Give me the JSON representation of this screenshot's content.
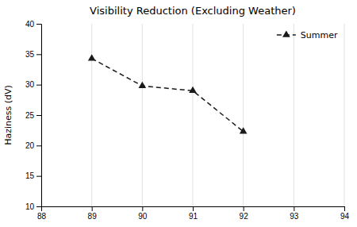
{
  "chart_data": {
    "type": "line",
    "title": "Visibility Reduction (Excluding Weather)",
    "ylabel": "Haziness (dV)",
    "x": [
      89,
      90,
      91,
      92
    ],
    "series": [
      {
        "name": "Summer",
        "color": "#1a1a1a",
        "marker": "triangle",
        "line_style": "dashed",
        "values": [
          34.3,
          29.8,
          29.0,
          22.3
        ]
      }
    ],
    "xlim": [
      88,
      94
    ],
    "ylim": [
      10,
      40
    ],
    "xticks": [
      88,
      89,
      90,
      91,
      92,
      93,
      94
    ],
    "yticks": [
      10,
      15,
      20,
      25,
      30,
      35,
      40
    ],
    "grid": "x",
    "legend": "upper right"
  }
}
